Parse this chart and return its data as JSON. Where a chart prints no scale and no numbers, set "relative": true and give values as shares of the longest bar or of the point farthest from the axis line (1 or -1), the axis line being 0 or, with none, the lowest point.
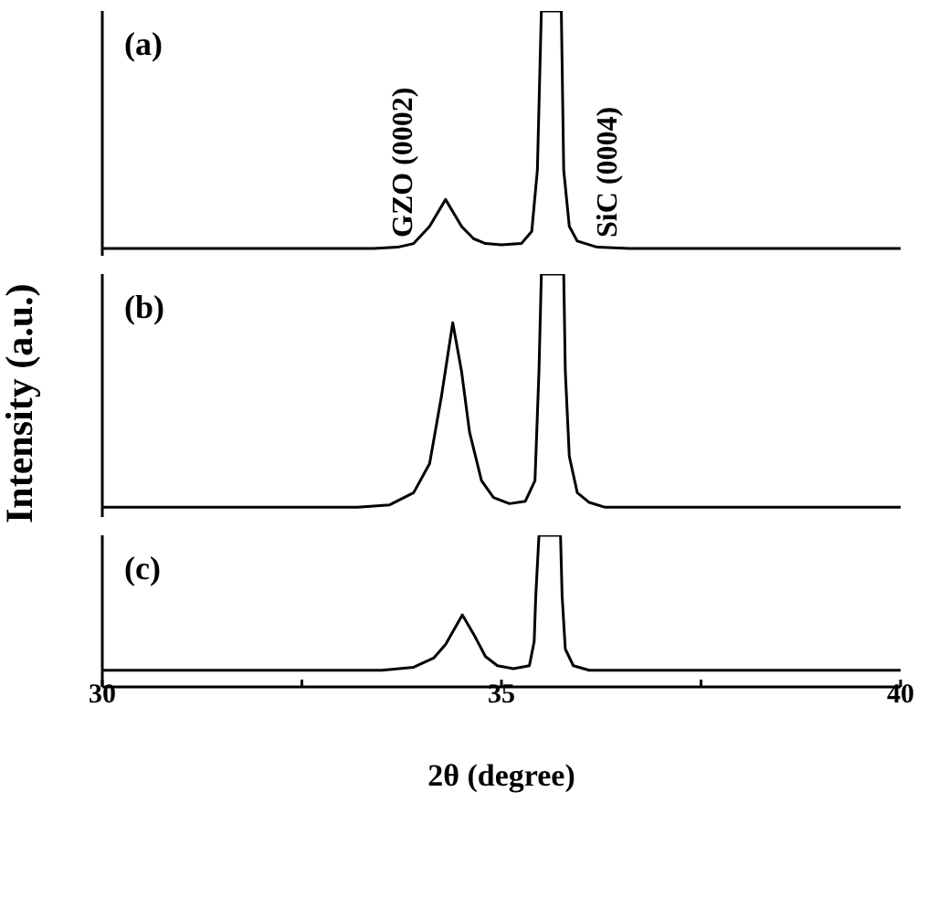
{
  "chart_data": [
    {
      "type": "line",
      "title": "(a)",
      "relative": true,
      "xlim": [
        30,
        40
      ],
      "tick_labels": false,
      "annotations": [
        "GZO (0002)",
        "SiC (0004)"
      ],
      "series": [
        {
          "color": "#000000",
          "x": [
            30,
            33.4,
            33.7,
            33.9,
            34.1,
            34.3,
            34.5,
            34.65,
            34.8,
            35.0,
            35.25,
            35.38,
            35.45,
            35.5,
            35.75,
            35.78,
            35.85,
            35.95,
            36.2,
            36.6,
            40
          ],
          "values": [
            0.03,
            0.03,
            0.035,
            0.05,
            0.12,
            0.23,
            0.12,
            0.07,
            0.05,
            0.045,
            0.05,
            0.1,
            0.35,
            1,
            1,
            0.35,
            0.12,
            0.06,
            0.035,
            0.03,
            0.03
          ]
        }
      ]
    },
    {
      "type": "line",
      "title": "(b)",
      "relative": true,
      "ylabel": "Intensity (a.u.)",
      "xlim": [
        30,
        40
      ],
      "tick_labels": false,
      "series": [
        {
          "color": "#000000",
          "x": [
            30,
            33.2,
            33.6,
            33.9,
            34.1,
            34.25,
            34.39,
            34.5,
            34.6,
            34.75,
            34.9,
            35.1,
            35.3,
            35.42,
            35.47,
            35.5,
            35.78,
            35.8,
            35.85,
            35.95,
            36.1,
            36.3,
            40
          ],
          "values": [
            0.04,
            0.04,
            0.05,
            0.1,
            0.22,
            0.5,
            0.8,
            0.6,
            0.35,
            0.15,
            0.08,
            0.055,
            0.065,
            0.15,
            0.6,
            1,
            1,
            0.6,
            0.25,
            0.1,
            0.06,
            0.04,
            0.04
          ]
        }
      ]
    },
    {
      "type": "line",
      "title": "(c)",
      "relative": true,
      "xlabel": "2θ (degree)",
      "xlim": [
        30,
        40
      ],
      "xticks": [
        30,
        {
          "value": 32.5,
          "label": null
        },
        35,
        {
          "value": 37.5,
          "label": null
        },
        40
      ],
      "tick_labels": "x",
      "series": [
        {
          "color": "#000000",
          "x": [
            30,
            33.5,
            33.9,
            34.15,
            34.3,
            34.51,
            34.65,
            34.8,
            34.95,
            35.15,
            35.35,
            35.41,
            35.43,
            35.47,
            35.74,
            35.76,
            35.8,
            35.9,
            36.1,
            40
          ],
          "values": [
            0.11,
            0.11,
            0.13,
            0.19,
            0.28,
            0.475,
            0.35,
            0.2,
            0.14,
            0.12,
            0.14,
            0.3,
            0.6,
            1,
            1,
            0.6,
            0.25,
            0.14,
            0.11,
            0.11
          ]
        }
      ]
    }
  ]
}
